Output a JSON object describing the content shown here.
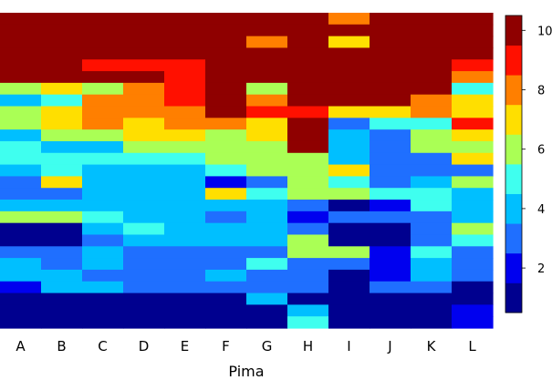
{
  "chart_data": {
    "type": "heatmap",
    "xlabel": "Pima",
    "ylabel": "",
    "categories": [
      "A",
      "B",
      "C",
      "D",
      "E",
      "F",
      "G",
      "H",
      "I",
      "J",
      "K",
      "L"
    ],
    "n_rows": 27,
    "colorbar": {
      "colormap": "jet",
      "levels": 10,
      "range": [
        0.5,
        10.5
      ],
      "ticks": [
        2,
        4,
        6,
        8,
        10
      ],
      "palette": [
        "#00008f",
        "#0000ef",
        "#1f6fff",
        "#00bfff",
        "#3fffef",
        "#aaff55",
        "#ffdf00",
        "#ff7f00",
        "#ff1000",
        "#8f0000"
      ]
    },
    "grid": false,
    "legend": "none",
    "columns": [
      [
        10,
        10,
        10,
        10,
        10,
        10,
        6,
        4,
        6,
        6,
        4,
        5,
        5,
        4,
        3,
        3,
        4,
        6,
        1,
        1,
        3,
        4,
        4,
        2,
        1,
        1,
        1
      ],
      [
        10,
        10,
        10,
        10,
        10,
        10,
        7,
        5,
        7,
        7,
        6,
        4,
        5,
        5,
        7,
        3,
        4,
        6,
        1,
        1,
        3,
        3,
        4,
        4,
        1,
        1,
        1
      ],
      [
        10,
        10,
        10,
        10,
        9,
        10,
        6,
        8,
        8,
        8,
        6,
        4,
        5,
        4,
        4,
        4,
        4,
        5,
        4,
        3,
        4,
        4,
        3,
        4,
        1,
        1,
        1
      ],
      [
        10,
        10,
        10,
        10,
        9,
        10,
        8,
        8,
        8,
        7,
        7,
        6,
        5,
        4,
        4,
        4,
        4,
        4,
        5,
        4,
        3,
        3,
        3,
        3,
        1,
        1,
        1
      ],
      [
        10,
        10,
        10,
        10,
        9,
        9,
        9,
        9,
        8,
        8,
        7,
        6,
        5,
        4,
        4,
        4,
        4,
        4,
        4,
        4,
        3,
        3,
        3,
        3,
        1,
        1,
        1
      ],
      [
        10,
        10,
        10,
        10,
        10,
        10,
        10,
        10,
        10,
        8,
        6,
        6,
        6,
        5,
        2,
        7,
        4,
        3,
        4,
        4,
        3,
        3,
        4,
        3,
        1,
        1,
        1
      ],
      [
        10,
        10,
        8,
        10,
        10,
        10,
        6,
        8,
        9,
        7,
        7,
        6,
        6,
        6,
        3,
        5,
        4,
        4,
        4,
        4,
        3,
        5,
        3,
        3,
        4,
        1,
        1
      ],
      [
        10,
        10,
        10,
        10,
        10,
        10,
        10,
        10,
        9,
        10,
        10,
        10,
        6,
        6,
        6,
        6,
        3,
        2,
        3,
        6,
        6,
        3,
        3,
        3,
        1,
        4,
        5
      ],
      [
        8,
        10,
        7,
        10,
        10,
        10,
        10,
        10,
        7,
        3,
        4,
        4,
        4,
        7,
        5,
        6,
        1,
        3,
        1,
        1,
        6,
        3,
        1,
        1,
        1,
        1,
        1
      ],
      [
        10,
        10,
        10,
        10,
        10,
        10,
        10,
        10,
        7,
        5,
        3,
        3,
        3,
        3,
        3,
        5,
        2,
        3,
        1,
        1,
        2,
        2,
        2,
        3,
        1,
        1,
        1
      ],
      [
        10,
        10,
        10,
        10,
        10,
        10,
        10,
        8,
        8,
        5,
        6,
        6,
        3,
        3,
        4,
        5,
        5,
        3,
        3,
        3,
        5,
        4,
        4,
        3,
        1,
        1,
        1
      ],
      [
        10,
        10,
        10,
        10,
        9,
        8,
        5,
        7,
        7,
        9,
        7,
        6,
        7,
        3,
        6,
        4,
        4,
        4,
        6,
        5,
        3,
        3,
        3,
        1,
        1,
        2,
        2
      ]
    ]
  }
}
